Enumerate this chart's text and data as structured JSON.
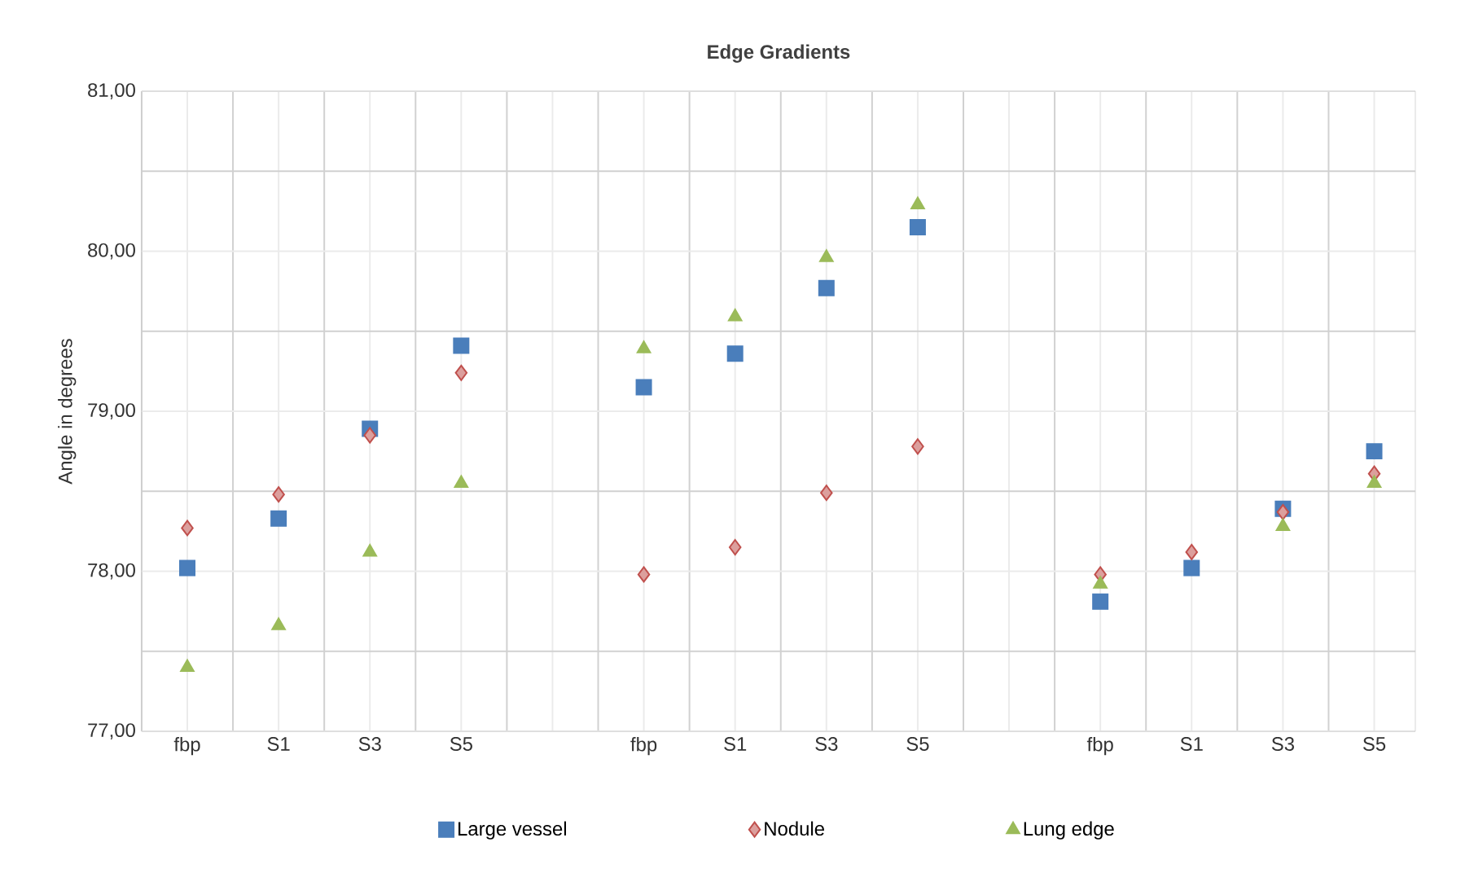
{
  "chart_data": {
    "type": "scatter",
    "title": "Edge Gradients",
    "ylabel": "Angle in degrees",
    "categories": [
      "fbp",
      "S1",
      "S3",
      "S5",
      null,
      "fbp",
      "S1",
      "S3",
      "S5",
      null,
      "fbp",
      "S1",
      "S3",
      "S5"
    ],
    "series": [
      {
        "name": "Large vessel",
        "color": "#4a7ebb",
        "marker": "square",
        "values": [
          78.02,
          78.33,
          78.89,
          79.41,
          null,
          79.15,
          79.36,
          79.77,
          80.15,
          null,
          77.81,
          78.02,
          78.39,
          78.75
        ]
      },
      {
        "name": "Nodule",
        "color": "#c0504d",
        "marker": "diamond",
        "values": [
          78.27,
          78.48,
          78.85,
          79.24,
          null,
          77.98,
          78.15,
          78.49,
          78.78,
          null,
          77.98,
          78.12,
          78.37,
          78.61
        ]
      },
      {
        "name": "Lung edge",
        "color": "#9bbb59",
        "marker": "triangle",
        "values": [
          77.4,
          77.66,
          78.12,
          78.55,
          null,
          79.39,
          79.59,
          79.96,
          80.29,
          null,
          77.92,
          null,
          78.28,
          78.55
        ]
      }
    ],
    "ylim": [
      77,
      81
    ],
    "yticks": [
      {
        "value": 77,
        "label": "77,00"
      },
      {
        "value": 78,
        "label": "78,00"
      },
      {
        "value": 79,
        "label": "79,00"
      },
      {
        "value": 80,
        "label": "80,00"
      },
      {
        "value": 81,
        "label": "81,00"
      }
    ],
    "grid": true,
    "legend": "bottom"
  }
}
